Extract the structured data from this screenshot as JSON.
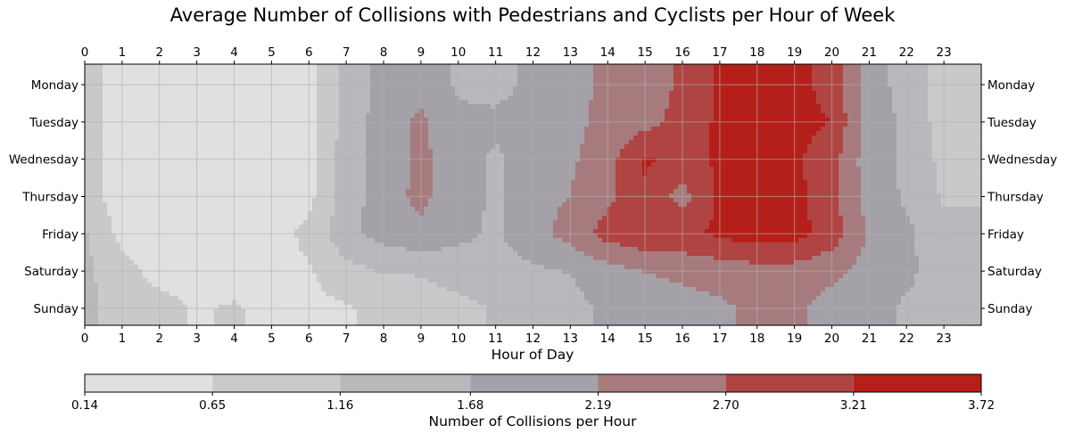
{
  "chart_data": {
    "type": "heatmap",
    "title": "Average Number of Collisions with Pedestrians and Cyclists per Hour of Week",
    "xlabel": "Hour of Day",
    "ylabel": "",
    "x_ticks": [
      "0",
      "1",
      "2",
      "3",
      "4",
      "5",
      "6",
      "7",
      "8",
      "9",
      "10",
      "11",
      "12",
      "13",
      "14",
      "15",
      "16",
      "17",
      "18",
      "19",
      "20",
      "21",
      "22",
      "23"
    ],
    "days": [
      "Monday",
      "Tuesday",
      "Wednesday",
      "Thursday",
      "Friday",
      "Saturday",
      "Sunday"
    ],
    "grid": true,
    "contour_levels": [
      0.14,
      0.65,
      1.16,
      1.68,
      2.19,
      2.7,
      3.21,
      3.72
    ],
    "level_labels": [
      "0.14",
      "0.65",
      "1.16",
      "1.68",
      "2.19",
      "2.70",
      "3.21",
      "3.72"
    ],
    "level_colors": [
      "#e0e0e0",
      "#c9c9cb",
      "#b9b8bd",
      "#a4a1a8",
      "#a77b7e",
      "#b04442",
      "#b51f1a"
    ],
    "colorbar_label": "Number of Collisions per Hour",
    "values": [
      [
        0.9,
        0.4,
        0.3,
        0.3,
        0.3,
        0.3,
        0.4,
        1.4,
        1.8,
        2.0,
        1.6,
        1.5,
        1.8,
        2.0,
        2.3,
        2.4,
        2.8,
        3.3,
        3.6,
        3.4,
        3.0,
        1.9,
        1.5,
        0.9
      ],
      [
        0.9,
        0.4,
        0.3,
        0.3,
        0.3,
        0.3,
        0.4,
        1.4,
        1.9,
        2.3,
        1.8,
        1.8,
        2.0,
        2.0,
        2.4,
        2.5,
        2.9,
        3.3,
        3.6,
        3.4,
        3.2,
        1.9,
        1.6,
        0.9
      ],
      [
        0.9,
        0.4,
        0.3,
        0.3,
        0.3,
        0.3,
        0.5,
        1.4,
        1.9,
        2.3,
        1.9,
        1.6,
        1.9,
        2.1,
        2.5,
        3.3,
        3.0,
        3.3,
        3.6,
        3.3,
        2.9,
        1.9,
        1.6,
        1.0
      ],
      [
        0.9,
        0.4,
        0.3,
        0.3,
        0.3,
        0.3,
        0.5,
        1.4,
        2.0,
        2.3,
        1.9,
        1.6,
        2.0,
        2.2,
        2.6,
        3.1,
        2.5,
        3.3,
        3.6,
        3.4,
        2.8,
        2.0,
        1.6,
        1.1
      ],
      [
        1.2,
        0.5,
        0.3,
        0.3,
        0.3,
        0.4,
        0.8,
        1.5,
        1.9,
        2.1,
        1.8,
        1.6,
        2.0,
        2.4,
        2.9,
        3.1,
        3.1,
        3.3,
        3.5,
        3.4,
        3.0,
        2.1,
        1.8,
        1.3
      ],
      [
        1.3,
        0.8,
        0.5,
        0.5,
        0.4,
        0.4,
        0.6,
        1.0,
        1.2,
        1.2,
        1.4,
        1.5,
        1.6,
        1.7,
        2.0,
        2.2,
        2.3,
        2.4,
        2.5,
        2.5,
        2.3,
        2.0,
        1.8,
        1.4
      ],
      [
        1.3,
        0.9,
        0.8,
        0.6,
        0.7,
        0.5,
        0.5,
        0.6,
        0.8,
        0.9,
        1.0,
        1.2,
        1.3,
        1.5,
        1.8,
        1.9,
        2.0,
        2.1,
        2.3,
        2.3,
        2.0,
        1.9,
        1.6,
        1.5
      ]
    ]
  }
}
